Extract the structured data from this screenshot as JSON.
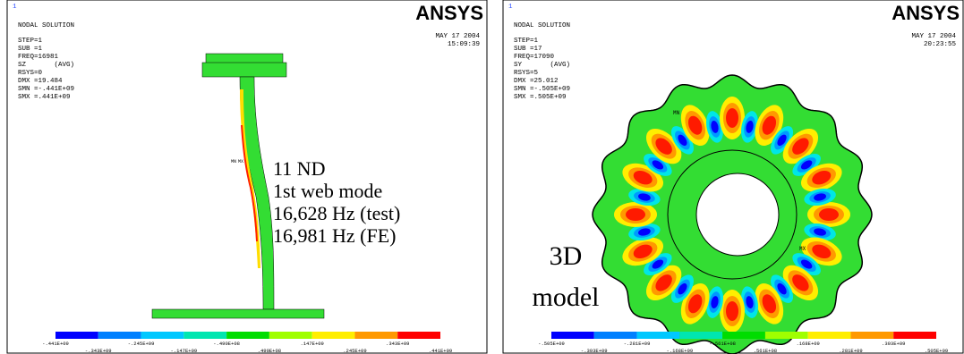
{
  "panels": [
    {
      "window_number": "1",
      "title": "NODAL SOLUTION",
      "info": [
        "STEP=1",
        "SUB =1",
        "FREQ=16981",
        "SZ       (AVG)",
        "RSYS=0",
        "DMX =19.484",
        "SMN =-.441E+09",
        "SMX =.441E+09"
      ],
      "logo": "ANSYS",
      "date": "MAY 17 2004",
      "time": "15:09:39",
      "colorbar_labels": [
        "-.441E+09",
        "-.343E+09",
        "-.245E+09",
        "-.147E+09",
        "-.490E+08",
        ".490E+08",
        ".147E+09",
        ".245E+09",
        ".343E+09",
        ".441E+09"
      ],
      "markers": [
        "MN",
        "MX"
      ],
      "annotation": [
        "11 ND",
        "1st web mode",
        "16,628 Hz (test)",
        "16,981 Hz (FE)"
      ]
    },
    {
      "window_number": "1",
      "title": "NODAL SOLUTION",
      "info": [
        "STEP=1",
        "SUB =17",
        "FREQ=17090",
        "SY       (AVG)",
        "RSYS=5",
        "DMX =25.012",
        "SMN =-.505E+09",
        "SMX =.505E+09"
      ],
      "logo": "ANSYS",
      "date": "MAY 17 2004",
      "time": "20:23:55",
      "colorbar_labels": [
        "-.505E+09",
        "-.393E+09",
        "-.281E+09",
        "-.168E+09",
        "-.561E+08",
        ".561E+08",
        ".168E+09",
        ".281E+09",
        ".393E+09",
        ".505E+09"
      ],
      "markers": [
        "MN",
        "MX"
      ],
      "annotation": [
        "3D",
        "model"
      ]
    }
  ]
}
